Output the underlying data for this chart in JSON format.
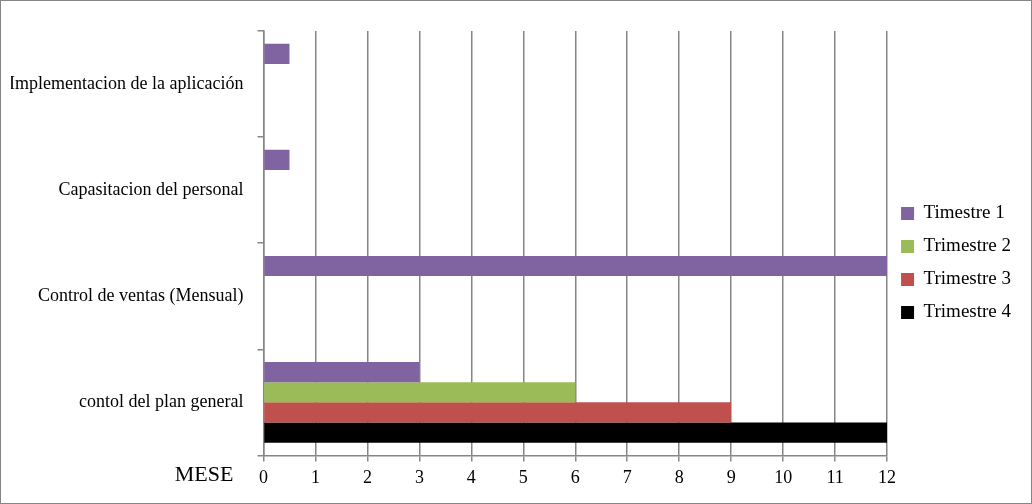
{
  "chart_data": {
    "type": "bar",
    "orientation": "horizontal",
    "xlabel": "MESE",
    "categories": [
      "Implementacion de la aplicación",
      "Capasitacion del personal",
      "Control de ventas (Mensual)",
      "contol del plan general"
    ],
    "series": [
      {
        "name": "Timestre 1",
        "color": "#8064a2",
        "values": [
          0.5,
          0.5,
          12,
          3
        ]
      },
      {
        "name": "Trimestre 2",
        "color": "#9bbb59",
        "values": [
          null,
          null,
          null,
          6
        ]
      },
      {
        "name": "Trimestre 3",
        "color": "#c0504d",
        "values": [
          null,
          null,
          null,
          9
        ]
      },
      {
        "name": "Trimestre 4",
        "color": "#000000",
        "values": [
          null,
          null,
          null,
          12
        ]
      }
    ],
    "xlim": [
      0,
      12
    ],
    "xticks": [
      0,
      1,
      2,
      3,
      4,
      5,
      6,
      7,
      8,
      9,
      10,
      11,
      12
    ],
    "grid": "x",
    "legend": "right"
  }
}
